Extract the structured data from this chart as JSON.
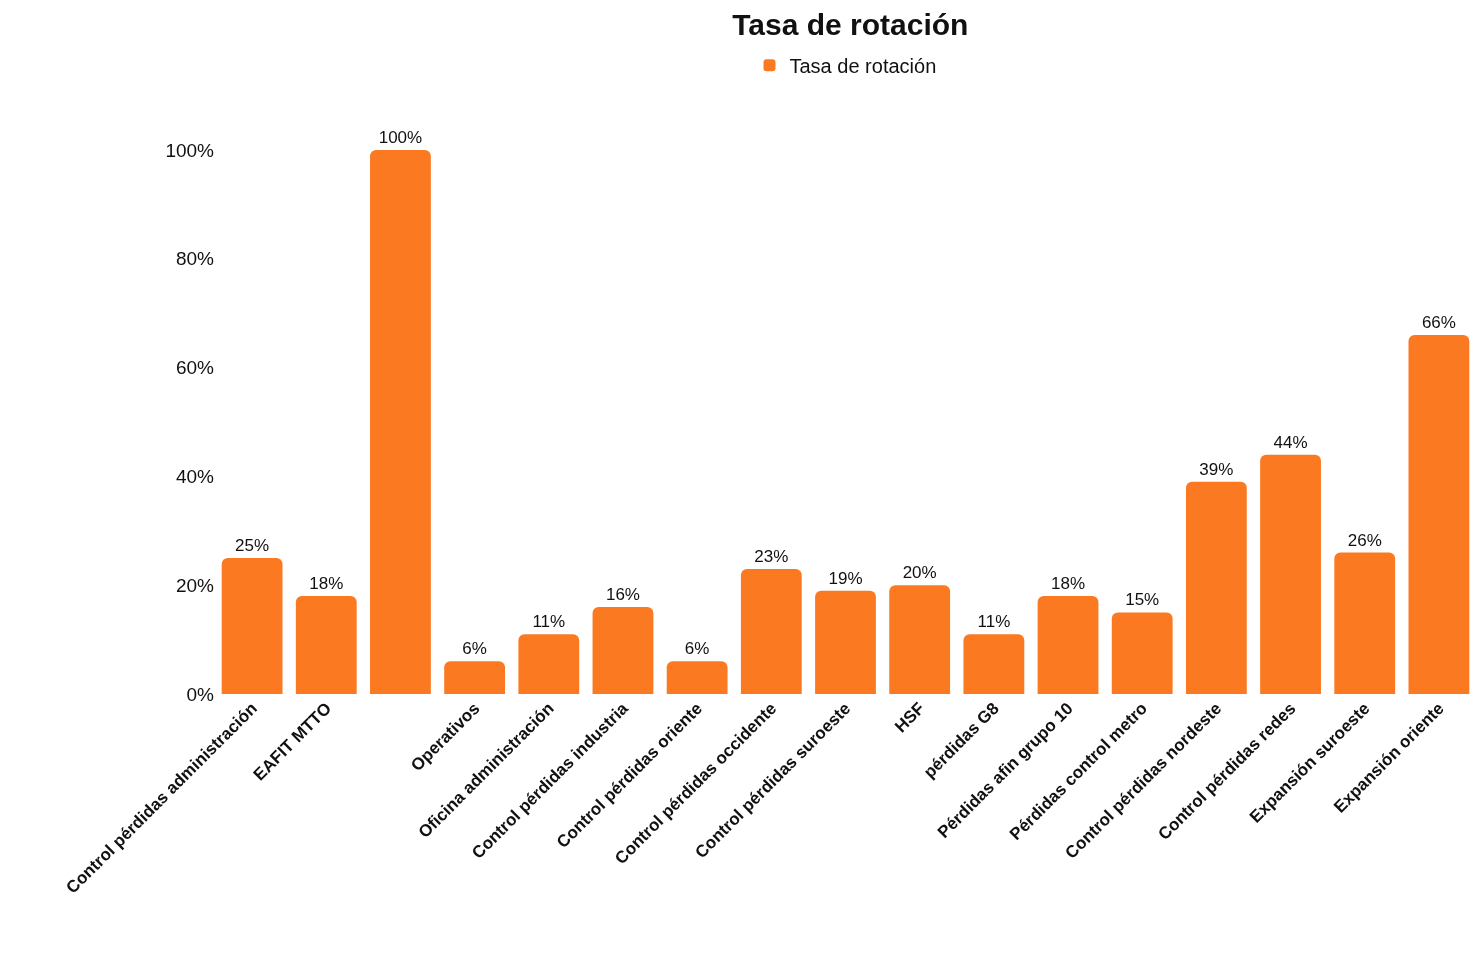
{
  "chart_data": {
    "type": "bar",
    "title": "Tasa de rotación",
    "categories": [
      "Control pérdidas administración",
      "EAFIT MTTO",
      null,
      "Operativos",
      "Oficina administración",
      "Control pérdidas industria",
      "Control pérdidas oriente",
      "Control pérdidas occidente",
      "Control pérdidas suroeste",
      "HSF",
      "pérdidas G8",
      "Pérdidas afin grupo 10",
      "Pérdidas control metro",
      "Control pérdidas nordeste",
      "Control pérdidas redes",
      "Expansión suroeste",
      "Expansión oriente"
    ],
    "series": [
      {
        "name": "Tasa de rotación",
        "color": "#fb7a21",
        "values": [
          25,
          18,
          100,
          6,
          11,
          16,
          6,
          23,
          19,
          20,
          11,
          18,
          15,
          39,
          44,
          26,
          66
        ],
        "value_labels": [
          "25%",
          "18%",
          "100%",
          "6%",
          "11%",
          "16%",
          "6%",
          "23%",
          "19%",
          "20%",
          "11%",
          "18%",
          "15%",
          "39%",
          "44%",
          "26%",
          "66%"
        ]
      }
    ],
    "ylim": [
      0,
      100
    ],
    "yticks": [
      {
        "value": 0,
        "label": "0%"
      },
      {
        "value": 20,
        "label": "20%"
      },
      {
        "value": 40,
        "label": "40%"
      },
      {
        "value": 60,
        "label": "60%"
      },
      {
        "value": 80,
        "label": "80%"
      },
      {
        "value": 100,
        "label": "100%"
      }
    ],
    "grid": false,
    "legend": "top"
  }
}
